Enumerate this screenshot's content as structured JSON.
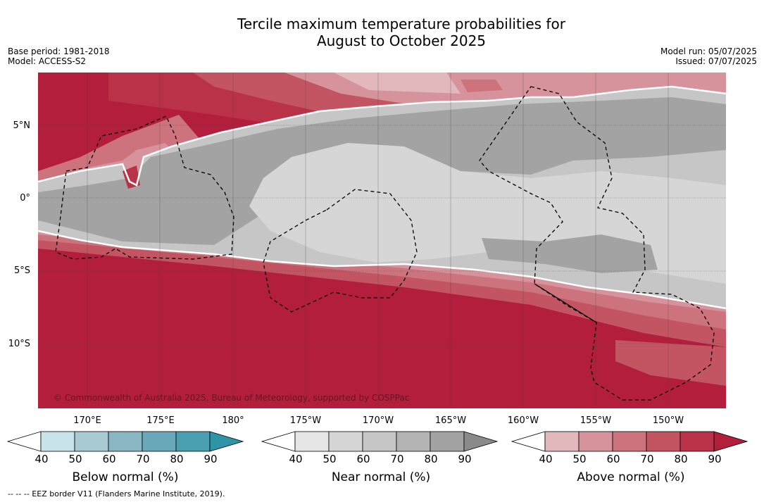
{
  "title_line1": "Tercile maximum temperature probabilities for",
  "title_line2": "August to October 2025",
  "base_period": "Base period: 1981-2018",
  "model": "Model: ACCESS-S2",
  "model_run": "Model run: 05/07/2025",
  "issued": "Issued: 07/07/2025",
  "copyright": "© Commonwealth of Australia 2025, Bureau of Meteorology, supported by COSPPac",
  "lat_labels": [
    "5°N",
    "0°",
    "5°S",
    "10°S"
  ],
  "lon_labels": [
    "170°E",
    "175°E",
    "180°",
    "175°W",
    "170°W",
    "165°W",
    "160°W",
    "155°W",
    "150°W"
  ],
  "colorbars": {
    "below": {
      "label": "Below normal (%)",
      "ticks": [
        "40",
        "50",
        "60",
        "70",
        "80",
        "90"
      ],
      "colors": [
        "#ffffff",
        "#c9e3ea",
        "#a8cbd3",
        "#88b6c3",
        "#69a9b9",
        "#4aa0b1",
        "#2f94a8"
      ]
    },
    "near": {
      "label": "Near normal (%)",
      "ticks": [
        "40",
        "50",
        "60",
        "70",
        "80",
        "90"
      ],
      "colors": [
        "#ffffff",
        "#e6e6e6",
        "#d6d6d6",
        "#c6c6c6",
        "#b4b4b4",
        "#a3a3a3",
        "#8a8a8a"
      ]
    },
    "above": {
      "label": "Above normal (%)",
      "ticks": [
        "40",
        "50",
        "60",
        "70",
        "80",
        "90"
      ],
      "colors": [
        "#ffffff",
        "#e2b8bd",
        "#d6939c",
        "#cc737e",
        "#c35462",
        "#ba3247",
        "#b21e3b"
      ]
    }
  },
  "footnote": "--  --  -- EEZ border V11 (Flanders Marine Institute, 2019)."
}
